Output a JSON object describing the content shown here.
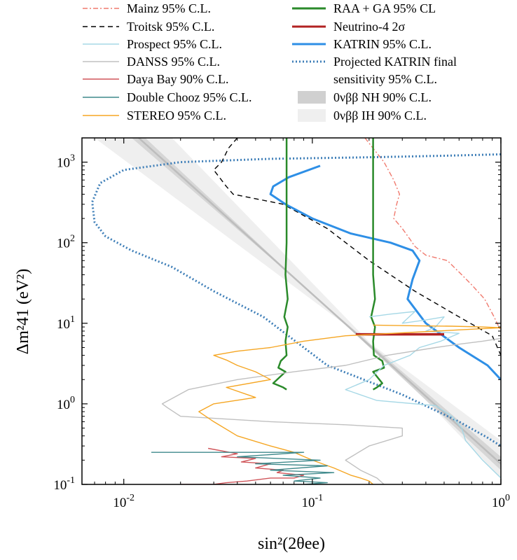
{
  "chart_data": {
    "type": "line",
    "title": "",
    "xlabel": "sin²(2θee)",
    "ylabel": "Δm²41 (eV²)",
    "xscale": "log",
    "yscale": "log",
    "xlim": [
      0.006,
      1
    ],
    "ylim": [
      0.1,
      2000
    ],
    "xticks": [
      {
        "value": 0.01,
        "mant": "10",
        "exp": "-2"
      },
      {
        "value": 0.1,
        "mant": "10",
        "exp": "-1"
      },
      {
        "value": 1,
        "mant": "10",
        "exp": "0"
      }
    ],
    "yticks": [
      {
        "value": 0.1,
        "mant": "10",
        "exp": "-1"
      },
      {
        "value": 1,
        "mant": "10",
        "exp": "0"
      },
      {
        "value": 10,
        "mant": "10",
        "exp": "1"
      },
      {
        "value": 100,
        "mant": "10",
        "exp": "2"
      },
      {
        "value": 1000,
        "mant": "10",
        "exp": "3"
      }
    ],
    "legend_placement": "top",
    "legend": [
      {
        "label": "Mainz 95% C.L.",
        "color": "#f07a6e",
        "style": "dashdot"
      },
      {
        "label": "Troitsk 95% C.L.",
        "color": "#000000",
        "style": "dashed"
      },
      {
        "label": "Prospect 95% C.L.",
        "color": "#a6d8e6",
        "style": "solid"
      },
      {
        "label": "DANSS 95% C.L.",
        "color": "#c0c0c0",
        "style": "solid"
      },
      {
        "label": "Daya Bay 90% C.L.",
        "color": "#d0555a",
        "style": "solid"
      },
      {
        "label": "Double Chooz 95% C.L.",
        "color": "#3f8a8c",
        "style": "solid"
      },
      {
        "label": "STEREO 95% C.L.",
        "color": "#f5a623",
        "style": "solid"
      },
      {
        "label": "RAA + GA 95% CL",
        "color": "#2a8a2a",
        "style": "solid"
      },
      {
        "label": "Neutrino-4 2σ",
        "color": "#b22222",
        "style": "solid"
      },
      {
        "label": "KATRIN 95% C.L.",
        "color": "#2e8fe6",
        "style": "solid"
      },
      {
        "label": "Projected KATRIN final",
        "label2": "sensitivity 95% C.L.",
        "color": "#3f7fb8",
        "style": "dotted"
      },
      {
        "label": "0νββ NH 90% C.L.",
        "color": "#d0d0d0",
        "style": "band"
      },
      {
        "label": "0νββ IH 90% C.L.",
        "color": "#efefef",
        "style": "band"
      }
    ],
    "series": [
      {
        "name": "Mainz 95% C.L.",
        "color": "#f07a6e",
        "style": "dashdot",
        "x": [
          0.19,
          0.24,
          0.27,
          0.29,
          0.28,
          0.27,
          0.3,
          0.33,
          0.35,
          0.4,
          0.52,
          0.62,
          0.7,
          0.82,
          0.92,
          1.0
        ],
        "y": [
          2000,
          1000,
          600,
          400,
          300,
          200,
          150,
          110,
          90,
          70,
          60,
          40,
          30,
          20,
          12,
          8
        ]
      },
      {
        "name": "Troitsk 95% C.L.",
        "color": "#000000",
        "style": "dashed",
        "x": [
          0.04,
          0.036,
          0.033,
          0.03,
          0.035,
          0.038,
          0.07,
          0.12,
          0.2,
          0.35,
          0.6,
          0.9,
          1.0
        ],
        "y": [
          2000,
          1500,
          1000,
          800,
          500,
          400,
          300,
          150,
          60,
          25,
          12,
          7,
          4
        ]
      },
      {
        "name": "KATRIN 95% C.L.",
        "color": "#2e8fe6",
        "style": "solid",
        "x": [
          0.11,
          0.075,
          0.062,
          0.06,
          0.072,
          0.1,
          0.16,
          0.26,
          0.34,
          0.37,
          0.34,
          0.32,
          0.4,
          0.6,
          0.85,
          1.0
        ],
        "y": [
          900,
          650,
          500,
          400,
          300,
          200,
          130,
          100,
          80,
          60,
          35,
          20,
          10,
          5,
          3,
          2
        ]
      },
      {
        "name": "Projected KATRIN final sensitivity 95% C.L.",
        "color": "#3f7fb8",
        "style": "dotted",
        "x": [
          1.0,
          0.5,
          0.2,
          0.06,
          0.02,
          0.01,
          0.0075,
          0.0068,
          0.007,
          0.008,
          0.011,
          0.018,
          0.03,
          0.055,
          0.12,
          0.3,
          0.6,
          0.85,
          1.0
        ],
        "y": [
          1250,
          1200,
          1150,
          1100,
          1000,
          800,
          550,
          320,
          180,
          120,
          80,
          50,
          25,
          12,
          3,
          1.3,
          0.6,
          0.38,
          0.3
        ]
      },
      {
        "name": "RAA + GA 95% CL (left)",
        "color": "#2a8a2a",
        "style": "solid",
        "x": [
          0.073,
          0.073,
          0.073,
          0.072,
          0.074,
          0.071,
          0.074,
          0.072,
          0.073,
          0.068,
          0.066,
          0.072,
          0.062,
          0.07,
          0.073
        ],
        "y": [
          2000,
          500,
          100,
          40,
          20,
          12,
          9,
          6,
          4,
          3.4,
          2.8,
          2.5,
          1.8,
          1.6,
          1.5
        ]
      },
      {
        "name": "RAA + GA 95% CL (right)",
        "color": "#2a8a2a",
        "style": "solid",
        "x": [
          0.21,
          0.21,
          0.21,
          0.21,
          0.215,
          0.205,
          0.215,
          0.21,
          0.212,
          0.235,
          0.24,
          0.21,
          0.235,
          0.22,
          0.21
        ],
        "y": [
          2000,
          500,
          100,
          40,
          20,
          12,
          9,
          6,
          4,
          3.4,
          2.8,
          2.5,
          1.8,
          1.6,
          1.5
        ]
      },
      {
        "name": "Neutrino-4 2σ",
        "color": "#b22222",
        "style": "solid",
        "x": [
          0.17,
          0.5
        ],
        "y": [
          7.3,
          7.3
        ]
      },
      {
        "name": "Prospect 95% C.L.",
        "color": "#a6d8e6",
        "style": "solid",
        "x": [
          0.2,
          0.26,
          0.35,
          0.3,
          0.4,
          0.5,
          0.45,
          0.4,
          0.6,
          0.48,
          0.37,
          0.33,
          0.24,
          0.2,
          0.15,
          0.22,
          0.45,
          0.55,
          0.62,
          0.65,
          0.8,
          1.0
        ],
        "y": [
          12,
          13,
          14,
          10,
          11,
          12,
          9,
          8,
          7.5,
          6,
          5,
          4,
          3,
          2,
          1.5,
          1.1,
          0.95,
          0.7,
          0.5,
          0.35,
          0.2,
          0.12
        ]
      },
      {
        "name": "DANSS 95% C.L.",
        "color": "#c0c0c0",
        "style": "solid",
        "x": [
          1.0,
          0.8,
          0.6,
          0.45,
          0.25,
          0.15,
          0.08,
          0.04,
          0.022,
          0.016,
          0.017,
          0.02,
          0.06,
          0.15,
          0.3,
          0.3,
          0.2,
          0.15,
          0.18,
          0.22,
          0.24
        ],
        "y": [
          6.5,
          6,
          5.5,
          5,
          4,
          3,
          2.5,
          2,
          1.5,
          1.0,
          0.9,
          0.7,
          0.6,
          0.55,
          0.5,
          0.4,
          0.3,
          0.2,
          0.15,
          0.12,
          0.1
        ]
      },
      {
        "name": "STEREO 95% C.L.",
        "color": "#f5a623",
        "style": "solid",
        "x": [
          0.21,
          0.35,
          0.55,
          0.8,
          1.0,
          0.45,
          0.15,
          0.09,
          0.06,
          0.04,
          0.03,
          0.035,
          0.04,
          0.05,
          0.06,
          0.035,
          0.05,
          0.03,
          0.025,
          0.03,
          0.04,
          0.06,
          0.08,
          0.1,
          0.13,
          0.16,
          0.18,
          0.2,
          0.21
        ],
        "y": [
          9.5,
          9.3,
          9.2,
          9.0,
          8.8,
          8.0,
          7.0,
          6.0,
          5.0,
          4.5,
          4.0,
          3.5,
          3.0,
          2.5,
          2.0,
          1.6,
          1.2,
          1.0,
          0.8,
          0.6,
          0.4,
          0.3,
          0.25,
          0.2,
          0.16,
          0.13,
          0.12,
          0.11,
          0.1
        ]
      },
      {
        "name": "Daya Bay 90% C.L.",
        "color": "#d0555a",
        "style": "solid",
        "x": [
          0.028,
          0.04,
          0.033,
          0.05,
          0.042,
          0.06,
          0.05,
          0.07,
          0.065,
          0.09,
          0.08,
          0.06,
          0.045,
          0.035,
          0.03,
          0.025,
          0.02
        ],
        "y": [
          0.28,
          0.24,
          0.22,
          0.21,
          0.19,
          0.18,
          0.16,
          0.15,
          0.14,
          0.13,
          0.12,
          0.12,
          0.11,
          0.105,
          0.1,
          0.1,
          0.1
        ]
      },
      {
        "name": "Double Chooz 95% C.L.",
        "color": "#3f8a8c",
        "style": "solid",
        "x": [
          0.014,
          0.09,
          0.04,
          0.11,
          0.05,
          0.12,
          0.06,
          0.13,
          0.07,
          0.11,
          0.08,
          0.12,
          0.09,
          0.1
        ],
        "y": [
          0.25,
          0.25,
          0.22,
          0.2,
          0.18,
          0.17,
          0.15,
          0.14,
          0.13,
          0.12,
          0.11,
          0.105,
          0.1,
          0.1
        ]
      }
    ],
    "bands": [
      {
        "name": "0νββ IH 90% C.L.",
        "color": "#efefef",
        "upper": [
          [
            0.007,
            2000
          ],
          [
            1.0,
            0.35
          ]
        ],
        "lower": [
          [
            0.018,
            2000
          ],
          [
            1.0,
            0.12
          ]
        ]
      },
      {
        "name": "0νββ NH 90% C.L.",
        "color": "#d6d6d6",
        "upper": [
          [
            0.011,
            2000
          ],
          [
            1.0,
            0.22
          ]
        ],
        "lower": [
          [
            0.013,
            2000
          ],
          [
            1.0,
            0.15
          ]
        ]
      }
    ],
    "bands_center": {
      "name": "0νββ central",
      "color": "#bdbdbd",
      "points": [
        [
          0.012,
          2000
        ],
        [
          1.0,
          0.18
        ]
      ]
    }
  }
}
